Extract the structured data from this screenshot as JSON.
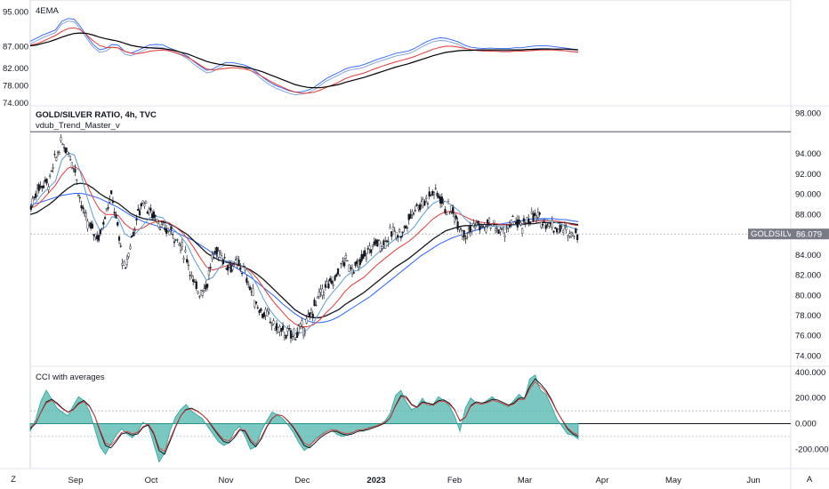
{
  "chart_data": [
    {
      "type": "line",
      "panel": "ema",
      "title": "4EMA",
      "yticks": [
        "95.000",
        "87.000",
        "82.000",
        "78.000",
        "74.000"
      ],
      "ylim": [
        74,
        97
      ],
      "colors": [
        "#2962ff",
        "#7b9bd9",
        "#e53935",
        "#000000"
      ]
    },
    {
      "type": "candlestick",
      "panel": "price",
      "title": "GOLD/SILVER RATIO, 4h, TVC",
      "subtitle": "vdub_Trend_Master_v",
      "yticks": [
        "98.000",
        "94.000",
        "92.000",
        "90.000",
        "88.000",
        "86.000",
        "84.000",
        "82.000",
        "80.000",
        "78.000",
        "76.000",
        "74.000"
      ],
      "ylim": [
        73.6,
        98.5
      ],
      "symbol": "GOLDSILVER",
      "last_price": "86.079",
      "last_value": 86.079,
      "resistance_level": 96.2,
      "x": [
        0,
        7,
        14,
        21,
        28,
        35,
        42,
        49,
        56,
        63,
        70,
        77,
        84,
        91,
        98,
        105,
        112,
        119,
        126,
        133,
        140,
        147,
        154,
        161,
        168,
        175,
        182,
        189,
        196,
        203,
        210,
        217,
        224,
        231,
        238,
        245,
        252,
        259,
        266,
        273,
        280,
        287,
        294,
        301,
        308,
        315,
        322,
        329,
        336,
        343,
        350,
        357,
        364,
        371,
        378,
        385,
        392,
        399,
        406,
        413,
        420,
        427,
        434,
        441,
        448,
        455,
        462,
        469,
        476,
        483,
        490,
        497,
        504,
        511,
        518,
        525,
        532,
        539,
        546,
        553,
        560,
        567,
        574,
        581,
        588,
        595,
        602,
        609
      ],
      "close": [
        88.6,
        90.4,
        91.1,
        91.2,
        93.5,
        95.1,
        94.3,
        92.8,
        89.2,
        87.1,
        86.4,
        85.7,
        88.5,
        89.9,
        86.2,
        82.1,
        85.4,
        87.8,
        89.6,
        88.2,
        87.9,
        86.4,
        86.5,
        85.9,
        84.7,
        83.6,
        80.9,
        80.4,
        81.0,
        83.9,
        84.5,
        83.2,
        82.9,
        83.1,
        82.4,
        80.6,
        79.0,
        78.2,
        77.7,
        76.8,
        76.4,
        76.1,
        76.2,
        76.6,
        77.3,
        78.8,
        80.1,
        80.9,
        81.2,
        82.4,
        83.5,
        82.7,
        82.8,
        83.9,
        84.6,
        85.3,
        85.1,
        85.9,
        86.4,
        86.0,
        87.3,
        88.8,
        89.0,
        89.6,
        90.3,
        89.9,
        88.6,
        88.4,
        87.2,
        86.1,
        86.6,
        87.0,
        86.6,
        87.1,
        86.6,
        86.2,
        86.7,
        87.5,
        86.5,
        87.6,
        87.8,
        87.4,
        87.3,
        86.8,
        86.6,
        86.4,
        86.2,
        86.1
      ],
      "ema_fast": [
        88.6,
        89.3,
        90.1,
        90.7,
        91.3,
        93.4,
        94.1,
        93.9,
        92.1,
        89.8,
        87.8,
        86.5,
        86.8,
        87.8,
        87.6,
        86.1,
        85.7,
        86.3,
        87.0,
        87.7,
        87.8,
        87.7,
        87.0,
        86.4,
        85.8,
        84.9,
        83.6,
        82.5,
        81.5,
        81.8,
        82.7,
        83.4,
        83.4,
        83.1,
        82.8,
        82.1,
        81.0,
        79.7,
        78.6,
        77.8,
        77.2,
        76.6,
        76.2,
        76.3,
        76.6,
        77.3,
        78.4,
        79.5,
        80.3,
        81.0,
        81.8,
        82.3,
        82.5,
        82.9,
        83.5,
        84.1,
        84.6,
        85.1,
        85.6,
        85.9,
        86.2,
        86.8,
        87.7,
        88.5,
        89.1,
        89.4,
        89.3,
        88.9,
        88.4,
        87.6,
        87.1,
        86.9,
        86.8,
        86.9,
        86.8,
        86.8,
        86.8,
        87.0,
        87.0,
        87.2,
        87.4,
        87.5,
        87.5,
        87.3,
        87.1,
        86.9,
        86.7,
        86.5
      ],
      "ema_mid": [
        88.6,
        88.9,
        89.5,
        90.2,
        90.9,
        91.9,
        92.6,
        92.8,
        92.3,
        91.0,
        89.6,
        88.5,
        88.0,
        88.0,
        87.9,
        87.1,
        86.6,
        86.5,
        86.7,
        87.1,
        87.3,
        87.4,
        87.2,
        86.8,
        86.3,
        85.6,
        84.7,
        83.7,
        82.8,
        82.5,
        82.7,
        82.9,
        83.1,
        83.0,
        82.8,
        82.4,
        81.7,
        80.8,
        79.9,
        79.1,
        78.4,
        77.7,
        77.2,
        76.9,
        76.9,
        77.1,
        77.6,
        78.3,
        78.9,
        79.6,
        80.4,
        81.0,
        81.4,
        81.8,
        82.4,
        83.0,
        83.5,
        84.0,
        84.5,
        84.9,
        85.3,
        85.8,
        86.4,
        87.0,
        87.6,
        88.0,
        88.3,
        88.3,
        88.1,
        87.8,
        87.5,
        87.3,
        87.2,
        87.1,
        87.1,
        87.0,
        87.0,
        87.1,
        87.1,
        87.2,
        87.3,
        87.4,
        87.4,
        87.4,
        87.3,
        87.2,
        87.0,
        86.9
      ],
      "ema_slow": [
        88.0,
        88.2,
        88.6,
        89.0,
        89.5,
        90.1,
        90.6,
        91.0,
        91.1,
        91.0,
        90.6,
        90.1,
        89.7,
        89.4,
        89.1,
        88.6,
        88.1,
        87.8,
        87.6,
        87.5,
        87.4,
        87.3,
        87.1,
        86.8,
        86.4,
        86.0,
        85.4,
        84.8,
        84.2,
        83.8,
        83.5,
        83.3,
        83.2,
        83.0,
        82.8,
        82.5,
        82.1,
        81.6,
        81.0,
        80.4,
        79.8,
        79.2,
        78.6,
        78.2,
        77.9,
        77.8,
        77.8,
        78.0,
        78.3,
        78.6,
        79.1,
        79.5,
        79.9,
        80.3,
        80.8,
        81.3,
        81.8,
        82.3,
        82.8,
        83.2,
        83.6,
        84.1,
        84.6,
        85.1,
        85.6,
        86.0,
        86.4,
        86.6,
        86.8,
        86.9,
        86.9,
        87.0,
        87.0,
        87.0,
        87.0,
        87.0,
        87.0,
        87.0,
        87.0,
        87.1,
        87.1,
        87.2,
        87.2,
        87.2,
        87.2,
        87.2,
        87.1,
        87.0
      ],
      "ma_long": [
        89.0,
        89.1,
        89.3,
        89.5,
        89.7,
        89.9,
        90.0,
        90.1,
        90.1,
        90.0,
        89.8,
        89.6,
        89.3,
        89.0,
        88.7,
        88.3,
        87.9,
        87.6,
        87.3,
        87.1,
        86.9,
        86.7,
        86.5,
        86.3,
        86.0,
        85.7,
        85.4,
        85.0,
        84.6,
        84.2,
        83.8,
        83.4,
        83.0,
        82.6,
        82.2,
        81.8,
        81.3,
        80.8,
        80.3,
        79.8,
        79.2,
        78.7,
        78.2,
        77.8,
        77.5,
        77.3,
        77.3,
        77.4,
        77.6,
        77.9,
        78.3,
        78.7,
        79.1,
        79.5,
        79.9,
        80.4,
        80.9,
        81.4,
        81.9,
        82.4,
        82.9,
        83.4,
        83.9,
        84.3,
        84.7,
        85.1,
        85.4,
        85.7,
        85.9,
        86.1,
        86.3,
        86.5,
        86.7,
        86.9,
        87.0,
        87.1,
        87.2,
        87.3,
        87.4,
        87.5,
        87.6,
        87.6,
        87.6,
        87.6,
        87.5,
        87.5,
        87.4,
        87.3
      ]
    },
    {
      "type": "area",
      "panel": "oscillator",
      "title": "CCI with averages",
      "yticks": [
        "400.000",
        "200.000",
        "0.000",
        "-200.000"
      ],
      "ylim": [
        -330,
        420
      ],
      "bands": [
        100,
        0,
        -100
      ],
      "values": [
        -60,
        30,
        180,
        260,
        190,
        120,
        90,
        60,
        140,
        210,
        180,
        100,
        -40,
        -180,
        -240,
        -160,
        -90,
        -40,
        -80,
        -110,
        -60,
        10,
        -20,
        -160,
        -300,
        -230,
        -60,
        50,
        110,
        150,
        100,
        70,
        40,
        -20,
        -80,
        -140,
        -170,
        -150,
        -60,
        -20,
        -100,
        -200,
        -180,
        -60,
        20,
        90,
        70,
        40,
        -10,
        -70,
        -150,
        -210,
        -180,
        -120,
        -90,
        -60,
        -40,
        -80,
        -100,
        -90,
        -70,
        -50,
        -60,
        -30,
        -20,
        -10,
        20,
        80,
        220,
        260,
        170,
        110,
        130,
        200,
        140,
        150,
        210,
        180,
        140,
        60,
        -60,
        120,
        200,
        160,
        150,
        180,
        210,
        170,
        150,
        130,
        180,
        230,
        190,
        350,
        380,
        260,
        230,
        140,
        40,
        -20,
        -80,
        -90,
        -120
      ],
      "average": [
        -40,
        0,
        90,
        170,
        190,
        160,
        120,
        90,
        110,
        160,
        180,
        140,
        60,
        -60,
        -170,
        -190,
        -140,
        -80,
        -70,
        -90,
        -80,
        -30,
        -10,
        -80,
        -210,
        -240,
        -140,
        -30,
        60,
        110,
        120,
        100,
        70,
        30,
        -30,
        -90,
        -140,
        -150,
        -110,
        -50,
        -60,
        -140,
        -180,
        -120,
        -30,
        40,
        70,
        60,
        20,
        -30,
        -100,
        -170,
        -190,
        -150,
        -110,
        -80,
        -60,
        -60,
        -80,
        -90,
        -80,
        -60,
        -55,
        -45,
        -30,
        -15,
        5,
        45,
        140,
        220,
        210,
        150,
        130,
        170,
        160,
        150,
        180,
        185,
        160,
        110,
        20,
        50,
        140,
        170,
        160,
        170,
        190,
        185,
        165,
        145,
        160,
        200,
        200,
        290,
        350,
        310,
        260,
        190,
        100,
        30,
        -40,
        -80,
        -100
      ]
    }
  ],
  "time_axis": {
    "labels": [
      "Sep",
      "Oct",
      "Nov",
      "Dec",
      "2023",
      "Feb",
      "Mar",
      "Apr",
      "May",
      "Jun"
    ]
  },
  "corner_buttons": {
    "left": "Z",
    "right": "A"
  }
}
